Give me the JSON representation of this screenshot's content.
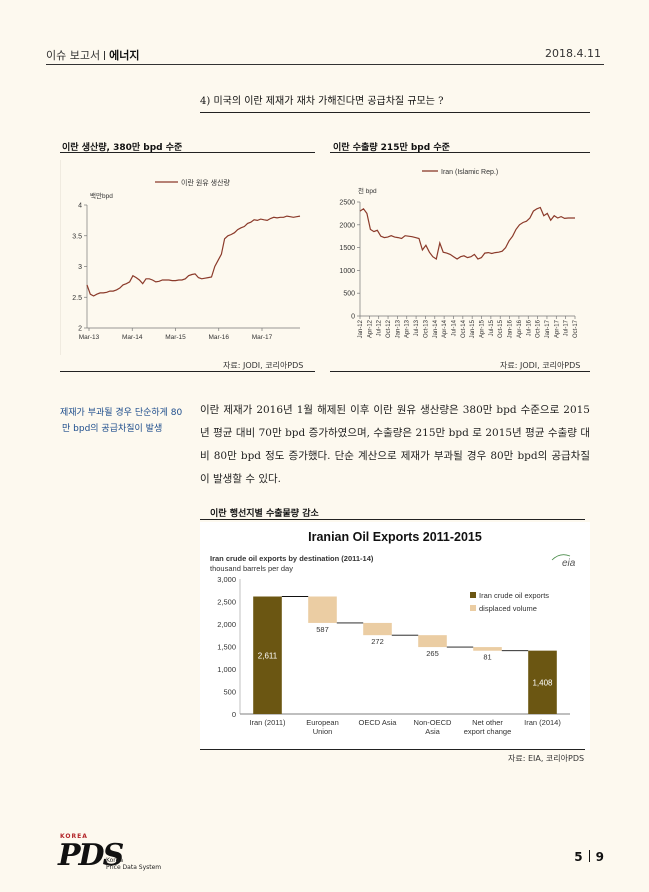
{
  "header": {
    "section": "이슈 보고서",
    "topic": "에너지",
    "date": "2018.4.11"
  },
  "question_title": "4) 미국의 이란 제재가 재차 가해진다면 공급차질 규모는 ?",
  "left_chart": {
    "title": "이란 생산량, 380만 bpd 수준",
    "source": "자료: JODI, 코리아PDS"
  },
  "right_chart": {
    "title": "이란 수출량 215만 bpd 수준",
    "source": "자료: JODI, 코리아PDS"
  },
  "sidebar_note": [
    "제재가 부과될 경우 단순하게 80",
    "만 bpd의 공급차질이 발생"
  ],
  "body_text": "이란 제재가 2016년 1월 해제된 이후 이란 원유 생산량은 380만 bpd 수준으로 2015년 평균 대비 70만 bpd 증가하였으며, 수출량은 215만 bpd 로 2015년 평균 수출량 대비 80만 bpd 정도 증가했다. 단순 계산으로 제재가 부과될 경우 80만 bpd의 공급차질이 발생할 수 있다.",
  "bottom_chart": {
    "section_title": "이란 행선지별 수출물량 감소",
    "source": "자료: EIA, 코리아PDS"
  },
  "page": {
    "current": "5",
    "total": "9"
  },
  "logo": {
    "brand_top": "KOREA",
    "brand_line1": "Korea",
    "brand_line2": "Price Data System"
  },
  "colors": {
    "line": "#8b3a2a",
    "dark_bar": "#6b5612",
    "light_bar": "#ebcda3",
    "accent_text": "#1d4d8c"
  },
  "chart_data": [
    {
      "type": "line",
      "ylabel": "백만bpd",
      "ylim": [
        2,
        4
      ],
      "yticks": [
        "2",
        "2.5",
        "3",
        "3.5",
        "4"
      ],
      "xticks": [
        "Mar-13",
        "Mar-14",
        "Mar-15",
        "Mar-16",
        "Mar-17"
      ],
      "series": [
        {
          "name": "이란 원유 생산량",
          "values": [
            2.7,
            2.55,
            2.52,
            2.55,
            2.57,
            2.57,
            2.58,
            2.6,
            2.6,
            2.62,
            2.65,
            2.7,
            2.72,
            2.75,
            2.85,
            2.82,
            2.78,
            2.72,
            2.8,
            2.8,
            2.78,
            2.75,
            2.76,
            2.78,
            2.78,
            2.78,
            2.77,
            2.77,
            2.78,
            2.78,
            2.8,
            2.85,
            2.87,
            2.88,
            2.82,
            2.8,
            2.81,
            2.82,
            2.83,
            3.0,
            3.1,
            3.2,
            3.45,
            3.5,
            3.52,
            3.55,
            3.6,
            3.63,
            3.65,
            3.7,
            3.72,
            3.76,
            3.75,
            3.77,
            3.76,
            3.75,
            3.78,
            3.8,
            3.79,
            3.8,
            3.8,
            3.82,
            3.81,
            3.8,
            3.81,
            3.82
          ]
        }
      ]
    },
    {
      "type": "line",
      "ylabel": "천 bpd",
      "ylim": [
        0,
        2500
      ],
      "yticks": [
        "0",
        "500",
        "1000",
        "1500",
        "2000",
        "2500"
      ],
      "xticks": [
        "Jan-12",
        "Apr-12",
        "Jul-12",
        "Oct-12",
        "Jan-13",
        "Apr-13",
        "Jul-13",
        "Oct-13",
        "Jan-14",
        "Apr-14",
        "Jul-14",
        "Oct-14",
        "Jan-15",
        "Apr-15",
        "Jul-15",
        "Oct-15",
        "Jan-16",
        "Apr-16",
        "Jul-16",
        "Oct-16",
        "Jan-17",
        "Apr-17",
        "Jul-17",
        "Oct-17"
      ],
      "series": [
        {
          "name": "Iran (Islamic Rep.)",
          "values": [
            2300,
            2350,
            2250,
            1900,
            1850,
            1880,
            1750,
            1720,
            1730,
            1760,
            1730,
            1720,
            1700,
            1760,
            1750,
            1740,
            1720,
            1700,
            1450,
            1550,
            1400,
            1300,
            1250,
            1600,
            1400,
            1380,
            1350,
            1300,
            1250,
            1300,
            1320,
            1280,
            1300,
            1350,
            1250,
            1280,
            1380,
            1390,
            1370,
            1390,
            1400,
            1420,
            1500,
            1650,
            1750,
            1900,
            2000,
            2050,
            2080,
            2150,
            2300,
            2350,
            2380,
            2200,
            2250,
            2100,
            2200,
            2150,
            2180,
            2140,
            2150,
            2150,
            2150
          ]
        }
      ]
    },
    {
      "type": "bar",
      "title": "Iranian Oil Exports 2011-2015",
      "subtitle": "Iran crude oil exports by destination (2011-14)",
      "unit": "thousand barrels per day",
      "logo_text": "eia",
      "ylim": [
        0,
        3000
      ],
      "yticks": [
        "0",
        "500",
        "1,000",
        "1,500",
        "2,000",
        "2,500",
        "3,000"
      ],
      "categories": [
        "Iran (2011)",
        "European Union",
        "OECD Asia",
        "Non-OECD Asia",
        "Net other export change",
        "Iran (2014)"
      ],
      "category_lines": [
        [
          "Iran (2011)"
        ],
        [
          "European",
          "Union"
        ],
        [
          "OECD Asia"
        ],
        [
          "Non-OECD",
          "Asia"
        ],
        [
          "Net other",
          "export change"
        ],
        [
          "Iran (2014)"
        ]
      ],
      "series": [
        {
          "name": "Iran crude oil exports",
          "values": [
            2611,
            null,
            null,
            null,
            null,
            1408
          ]
        },
        {
          "name": "displaced volume",
          "values": [
            null,
            587,
            272,
            265,
            81,
            null
          ]
        }
      ],
      "labels": [
        "2,611",
        "587",
        "272",
        "265",
        "81",
        "1,408"
      ]
    }
  ]
}
